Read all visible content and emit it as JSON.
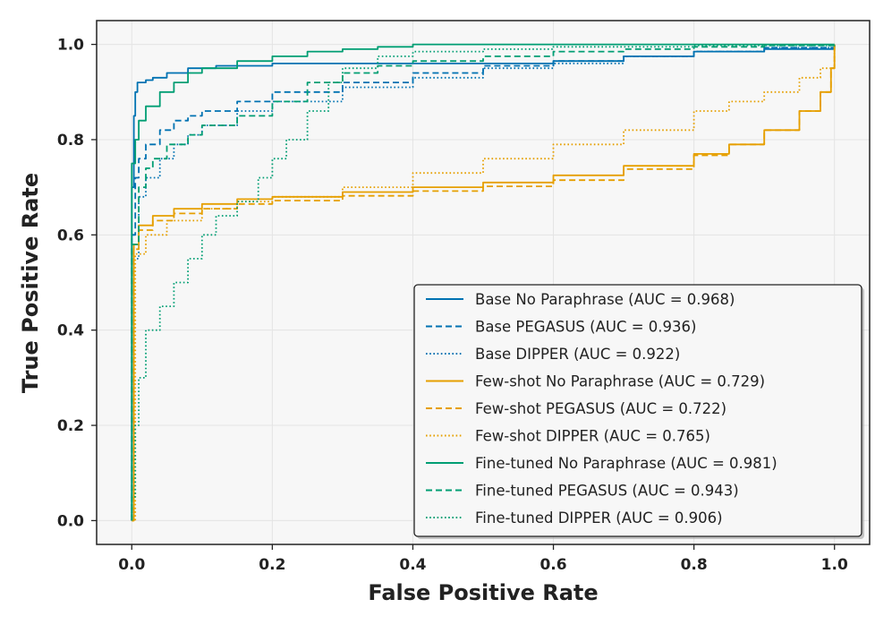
{
  "chart_data": {
    "type": "line",
    "title": "",
    "xlabel": "False Positive Rate",
    "ylabel": "True Positive Rate",
    "xlim": [
      -0.05,
      1.05
    ],
    "ylim": [
      -0.05,
      1.05
    ],
    "xticks": [
      0.0,
      0.2,
      0.4,
      0.6,
      0.8,
      1.0
    ],
    "yticks": [
      0.0,
      0.2,
      0.4,
      0.6,
      0.8,
      1.0
    ],
    "tick_labels_x": [
      "0.0",
      "0.2",
      "0.4",
      "0.6",
      "0.8",
      "1.0"
    ],
    "tick_labels_y": [
      "0.0",
      "0.2",
      "0.4",
      "0.6",
      "0.8",
      "1.0"
    ],
    "grid": true,
    "legend_position": "lower-right",
    "series": [
      {
        "name": "Base No Paraphrase (AUC = 0.968)",
        "color": "#0072b2",
        "style": "solid",
        "x": [
          0,
          0,
          0.003,
          0.005,
          0.008,
          0.02,
          0.03,
          0.05,
          0.08,
          0.12,
          0.2,
          0.4,
          0.55,
          0.6,
          0.7,
          0.8,
          0.9,
          1.0
        ],
        "y": [
          0,
          0.7,
          0.85,
          0.9,
          0.92,
          0.925,
          0.93,
          0.94,
          0.95,
          0.955,
          0.96,
          0.96,
          0.96,
          0.965,
          0.975,
          0.985,
          0.99,
          1.0
        ]
      },
      {
        "name": "Base PEGASUS (AUC = 0.936)",
        "color": "#0072b2",
        "style": "dashed",
        "x": [
          0,
          0,
          0.005,
          0.01,
          0.02,
          0.04,
          0.06,
          0.08,
          0.1,
          0.15,
          0.2,
          0.3,
          0.4,
          0.5,
          0.6,
          0.7,
          0.8,
          0.9,
          1.0
        ],
        "y": [
          0,
          0.6,
          0.72,
          0.76,
          0.79,
          0.82,
          0.84,
          0.85,
          0.86,
          0.88,
          0.9,
          0.92,
          0.94,
          0.955,
          0.965,
          0.975,
          0.985,
          0.993,
          1.0
        ]
      },
      {
        "name": "Base DIPPER (AUC = 0.922)",
        "color": "#0072b2",
        "style": "dotted",
        "x": [
          0,
          0,
          0.01,
          0.02,
          0.04,
          0.06,
          0.08,
          0.1,
          0.15,
          0.2,
          0.3,
          0.4,
          0.5,
          0.6,
          0.7,
          0.8,
          0.9,
          1.0
        ],
        "y": [
          0,
          0.55,
          0.68,
          0.72,
          0.76,
          0.79,
          0.81,
          0.83,
          0.86,
          0.88,
          0.91,
          0.93,
          0.95,
          0.96,
          0.975,
          0.985,
          0.993,
          1.0
        ]
      },
      {
        "name": "Few-shot No Paraphrase (AUC = 0.729)",
        "color": "#e69f00",
        "style": "solid",
        "x": [
          0,
          0.003,
          0.01,
          0.03,
          0.06,
          0.1,
          0.15,
          0.2,
          0.3,
          0.4,
          0.5,
          0.6,
          0.7,
          0.8,
          0.85,
          0.9,
          0.95,
          0.98,
          0.995,
          1.0
        ],
        "y": [
          0,
          0.58,
          0.62,
          0.64,
          0.655,
          0.665,
          0.675,
          0.68,
          0.69,
          0.7,
          0.71,
          0.725,
          0.745,
          0.77,
          0.79,
          0.82,
          0.86,
          0.9,
          0.95,
          1.0
        ]
      },
      {
        "name": "Few-shot PEGASUS (AUC = 0.722)",
        "color": "#e69f00",
        "style": "dashed",
        "x": [
          0,
          0.003,
          0.01,
          0.03,
          0.06,
          0.1,
          0.15,
          0.2,
          0.3,
          0.4,
          0.5,
          0.6,
          0.7,
          0.8,
          0.85,
          0.9,
          0.95,
          0.98,
          0.995,
          1.0
        ],
        "y": [
          0,
          0.57,
          0.61,
          0.63,
          0.645,
          0.655,
          0.665,
          0.672,
          0.682,
          0.692,
          0.702,
          0.715,
          0.738,
          0.767,
          0.79,
          0.82,
          0.86,
          0.9,
          0.95,
          1.0
        ]
      },
      {
        "name": "Few-shot DIPPER (AUC = 0.765)",
        "color": "#e69f00",
        "style": "dotted",
        "x": [
          0,
          0.005,
          0.02,
          0.05,
          0.1,
          0.15,
          0.2,
          0.3,
          0.4,
          0.5,
          0.6,
          0.7,
          0.8,
          0.85,
          0.9,
          0.95,
          0.98,
          1.0
        ],
        "y": [
          0,
          0.56,
          0.6,
          0.63,
          0.655,
          0.67,
          0.68,
          0.7,
          0.73,
          0.76,
          0.79,
          0.82,
          0.86,
          0.88,
          0.9,
          0.93,
          0.95,
          1.0
        ]
      },
      {
        "name": "Fine-tuned No Paraphrase (AUC = 0.981)",
        "color": "#009e73",
        "style": "solid",
        "x": [
          0,
          0,
          0.005,
          0.01,
          0.02,
          0.04,
          0.06,
          0.08,
          0.1,
          0.15,
          0.2,
          0.25,
          0.3,
          0.35,
          0.4,
          0.5,
          0.7,
          1.0
        ],
        "y": [
          0,
          0.75,
          0.8,
          0.84,
          0.87,
          0.9,
          0.92,
          0.94,
          0.95,
          0.965,
          0.975,
          0.985,
          0.99,
          0.995,
          1.0,
          1.0,
          1.0,
          1.0
        ]
      },
      {
        "name": "Fine-tuned PEGASUS (AUC = 0.943)",
        "color": "#009e73",
        "style": "dashed",
        "x": [
          0,
          0,
          0.01,
          0.02,
          0.03,
          0.05,
          0.08,
          0.1,
          0.15,
          0.2,
          0.25,
          0.3,
          0.35,
          0.4,
          0.5,
          0.6,
          0.7,
          0.8,
          0.9,
          1.0
        ],
        "y": [
          0,
          0.58,
          0.7,
          0.74,
          0.76,
          0.79,
          0.81,
          0.83,
          0.85,
          0.88,
          0.92,
          0.94,
          0.955,
          0.965,
          0.975,
          0.985,
          0.99,
          0.995,
          0.998,
          1.0
        ]
      },
      {
        "name": "Fine-tuned DIPPER (AUC = 0.906)",
        "color": "#009e73",
        "style": "dotted",
        "x": [
          0,
          0,
          0.005,
          0.01,
          0.02,
          0.04,
          0.06,
          0.08,
          0.1,
          0.12,
          0.15,
          0.18,
          0.2,
          0.22,
          0.25,
          0.28,
          0.3,
          0.35,
          0.4,
          0.5,
          0.6,
          0.8,
          1.0
        ],
        "y": [
          0,
          0.05,
          0.2,
          0.3,
          0.4,
          0.45,
          0.5,
          0.55,
          0.6,
          0.64,
          0.67,
          0.72,
          0.76,
          0.8,
          0.86,
          0.92,
          0.95,
          0.975,
          0.985,
          0.99,
          0.995,
          0.998,
          1.0
        ]
      }
    ]
  }
}
